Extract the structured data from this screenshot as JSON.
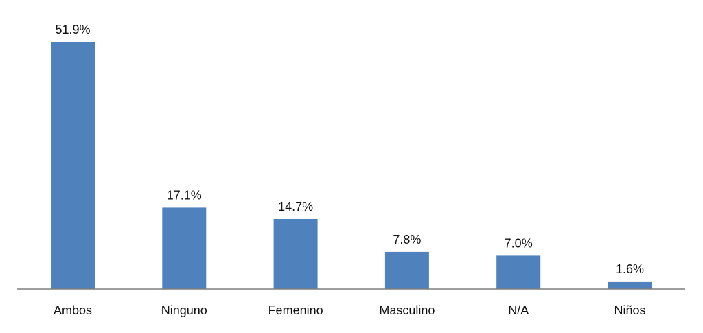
{
  "chart_data": {
    "type": "bar",
    "title": "",
    "xlabel": "",
    "ylabel": "",
    "categories": [
      "Ambos",
      "Ninguno",
      "Femenino",
      "Masculino",
      "N/A",
      "Niños"
    ],
    "values": [
      51.9,
      17.1,
      14.7,
      7.8,
      7.0,
      1.6
    ],
    "value_labels": [
      "51.9%",
      "17.1%",
      "14.7%",
      "7.8%",
      "7.0%",
      "1.6%"
    ],
    "unit": "%",
    "ylim": [
      0,
      51.9
    ],
    "grid": false,
    "legend": "none",
    "colors": {
      "bar": "#4F81BD",
      "axis": "#7f7f7f",
      "text": "#111111"
    }
  }
}
